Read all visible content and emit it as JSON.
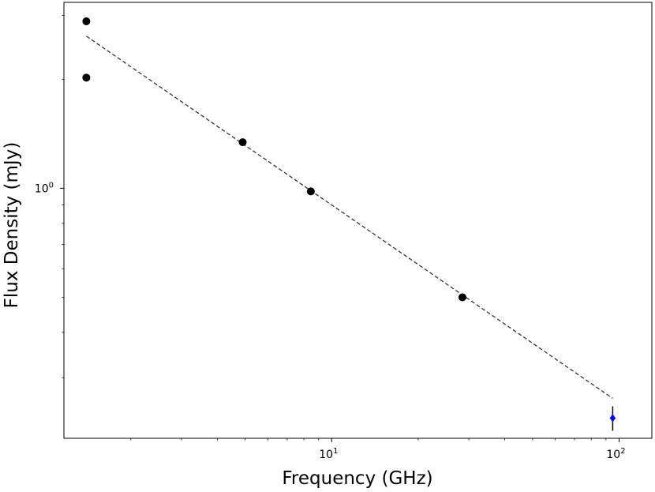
{
  "chart_data": {
    "type": "scatter",
    "title": "",
    "xlabel": "Frequency (GHz)",
    "ylabel": "Flux Density (mJy)",
    "x_scale": "log",
    "y_scale": "log",
    "xlim": [
      1.17,
      130
    ],
    "ylim": [
      0.204,
      3.26
    ],
    "grid": false,
    "x_ticks": [
      {
        "value": 10,
        "base": "10",
        "exp": "1"
      },
      {
        "value": 100,
        "base": "10",
        "exp": "2"
      }
    ],
    "y_ticks": [
      {
        "value": 1,
        "base": "10",
        "exp": "0"
      }
    ],
    "series": [
      {
        "marker": "circle",
        "color": "#000000",
        "points": [
          {
            "x": 1.4,
            "y": 2.89
          },
          {
            "x": 1.4,
            "y": 2.02
          },
          {
            "x": 4.9,
            "y": 1.34
          },
          {
            "x": 8.46,
            "y": 0.98
          },
          {
            "x": 28.5,
            "y": 0.5
          }
        ]
      },
      {
        "marker": "diamond",
        "color": "#0000ff",
        "points": [
          {
            "x": 95,
            "y": 0.232,
            "yerr_low": 0.214,
            "yerr_high": 0.25
          }
        ]
      }
    ],
    "fit_line": {
      "style": "dashed",
      "color": "#333333",
      "x": [
        1.4,
        95
      ],
      "y": [
        2.63,
        0.263
      ]
    }
  }
}
